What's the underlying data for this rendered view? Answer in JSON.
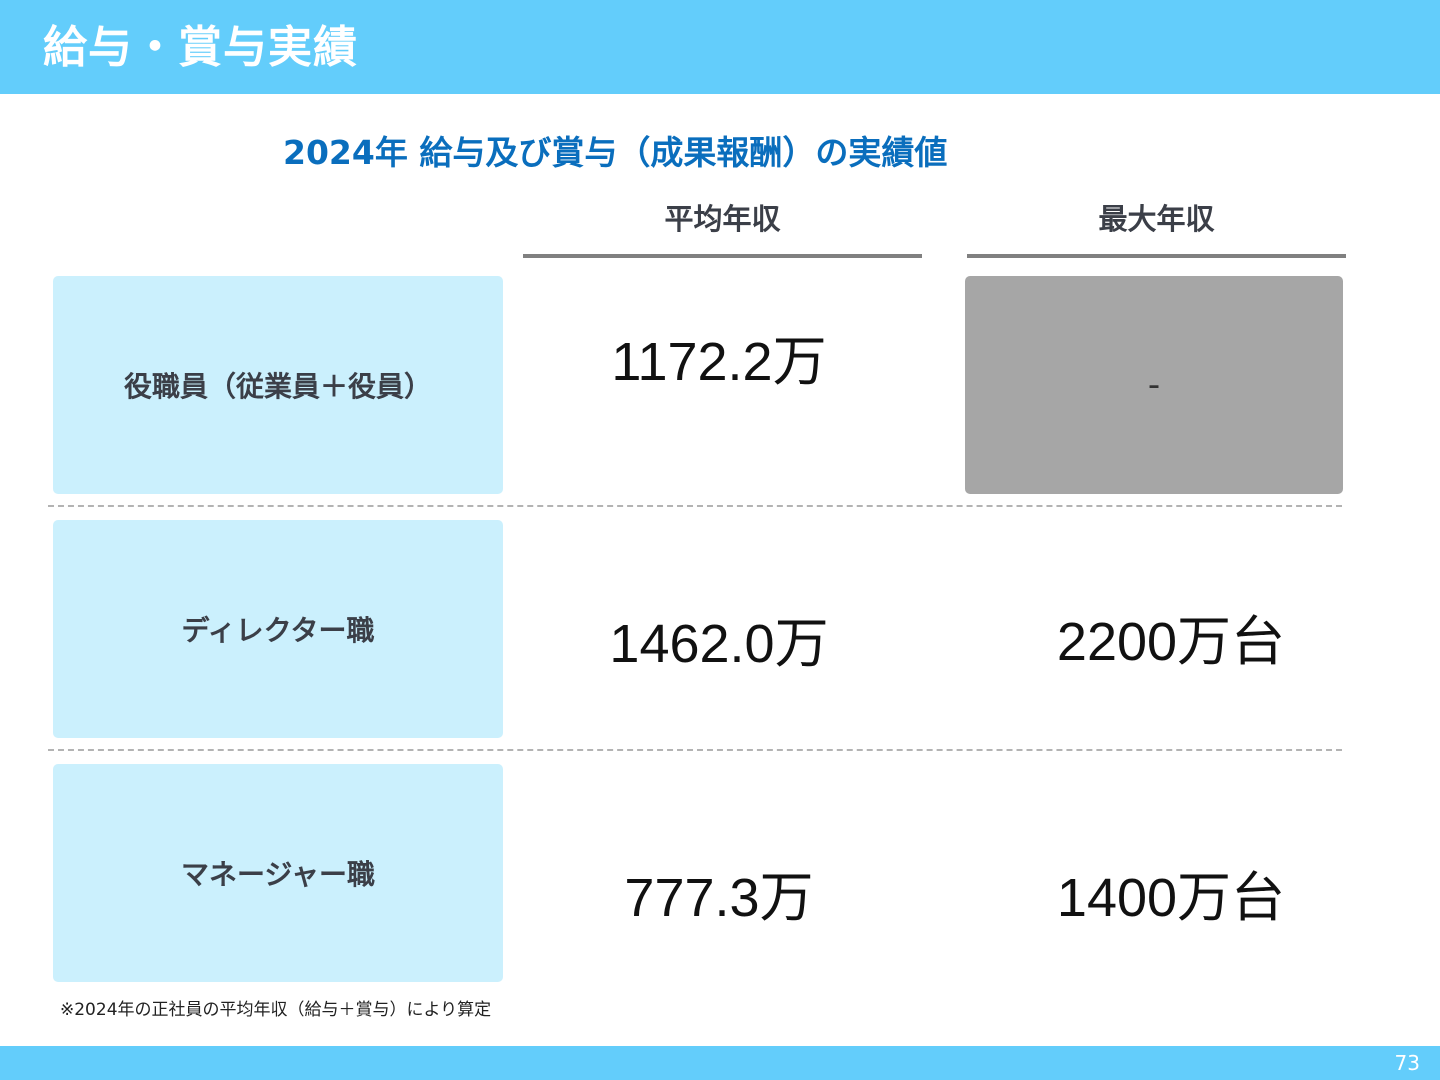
{
  "header": {
    "title": "給与・賞与実績"
  },
  "subtitle": "2024年 給与及び賞与（成果報酬）の実績値",
  "columns": {
    "average": "平均年収",
    "maximum": "最大年収"
  },
  "rows": [
    {
      "label": "役職員（従業員＋役員）",
      "average": "1172.2万",
      "maximum": "-"
    },
    {
      "label": "ディレクター職",
      "average": "1462.0万",
      "maximum": "2200万台"
    },
    {
      "label": "マネージャー職",
      "average": "777.3万",
      "maximum": "1400万台"
    }
  ],
  "colors": {
    "accent": "#63cdfb",
    "label_bg": "#cbf0fd",
    "title_blue": "#0a6ebd",
    "na_bg": "#a6a6a6"
  },
  "footnote": "※2024年の正社員の平均年収（給与＋賞与）により算定",
  "footer": {
    "page_number": "73"
  }
}
